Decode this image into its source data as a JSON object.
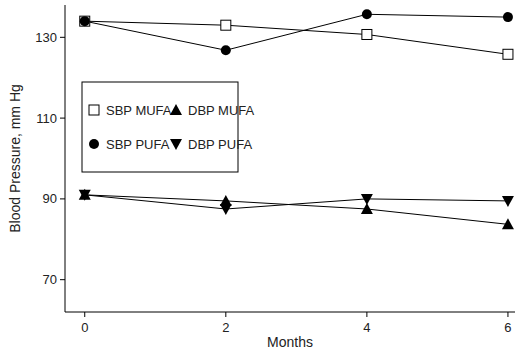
{
  "chart_data": {
    "type": "line",
    "x_label": "Months",
    "y_label": "Blood Pressure, mm Hg",
    "x": [
      0,
      2,
      4,
      6
    ],
    "series": [
      {
        "name": "SBP MUFA",
        "color": "#000000",
        "marker": "square-open",
        "values": [
          134,
          133,
          130.7,
          125.8
        ]
      },
      {
        "name": "SBP PUFA",
        "color": "#000000",
        "marker": "circle",
        "values": [
          134,
          126.8,
          135.7,
          135
        ]
      },
      {
        "name": "DBP MUFA",
        "color": "#000000",
        "marker": "triangle-up",
        "values": [
          91,
          89.5,
          87.5,
          83.7
        ]
      },
      {
        "name": "DBP PUFA",
        "color": "#000000",
        "marker": "triangle-down",
        "values": [
          91,
          87.5,
          90,
          89.5
        ]
      }
    ],
    "xlim": [
      -0.28,
      6.1
    ],
    "ylim": [
      62,
      138
    ],
    "xticks": [
      0,
      2,
      4,
      6
    ],
    "yticks": [
      70,
      90,
      110,
      130
    ],
    "legend": "upper left",
    "grid": false
  }
}
